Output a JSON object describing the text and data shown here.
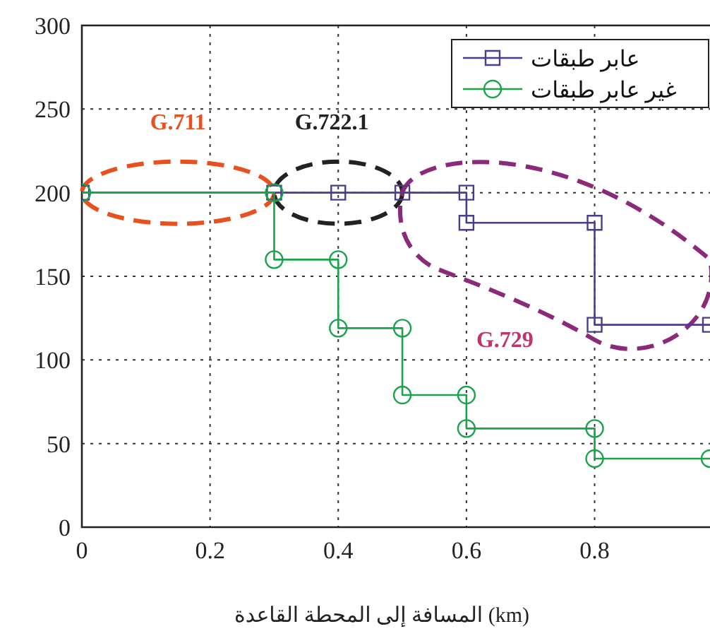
{
  "chart_data": {
    "type": "line",
    "xlabel": "المسافة إلى المحطة القاعدة (km)",
    "xlim": [
      0,
      0.98
    ],
    "xticks": [
      0,
      0.2,
      0.4,
      0.6,
      0.8
    ],
    "ylim": [
      0,
      300
    ],
    "yticks": [
      0,
      50,
      100,
      150,
      200,
      250,
      300
    ],
    "grid": true,
    "legend": "top right",
    "line_style": "solid",
    "series": [
      {
        "name": "عابر طبقات",
        "color": "#4b3c8c",
        "marker": "square",
        "x": [
          0,
          0.3,
          0.4,
          0.5,
          0.6,
          0.6,
          0.8,
          0.8,
          0.98
        ],
        "values": [
          200,
          200,
          200,
          200,
          200,
          182,
          182,
          121,
          121
        ]
      },
      {
        "name": "غير عابر طبقات",
        "color": "#1aa34a",
        "marker": "circle",
        "x": [
          0,
          0.3,
          0.3,
          0.4,
          0.4,
          0.5,
          0.5,
          0.6,
          0.6,
          0.8,
          0.8,
          0.98
        ],
        "values": [
          200,
          200,
          160,
          160,
          119,
          119,
          79,
          79,
          59,
          59,
          41,
          41
        ]
      }
    ],
    "annotations": [
      "G.711",
      "G.722.1",
      "G.729"
    ]
  }
}
